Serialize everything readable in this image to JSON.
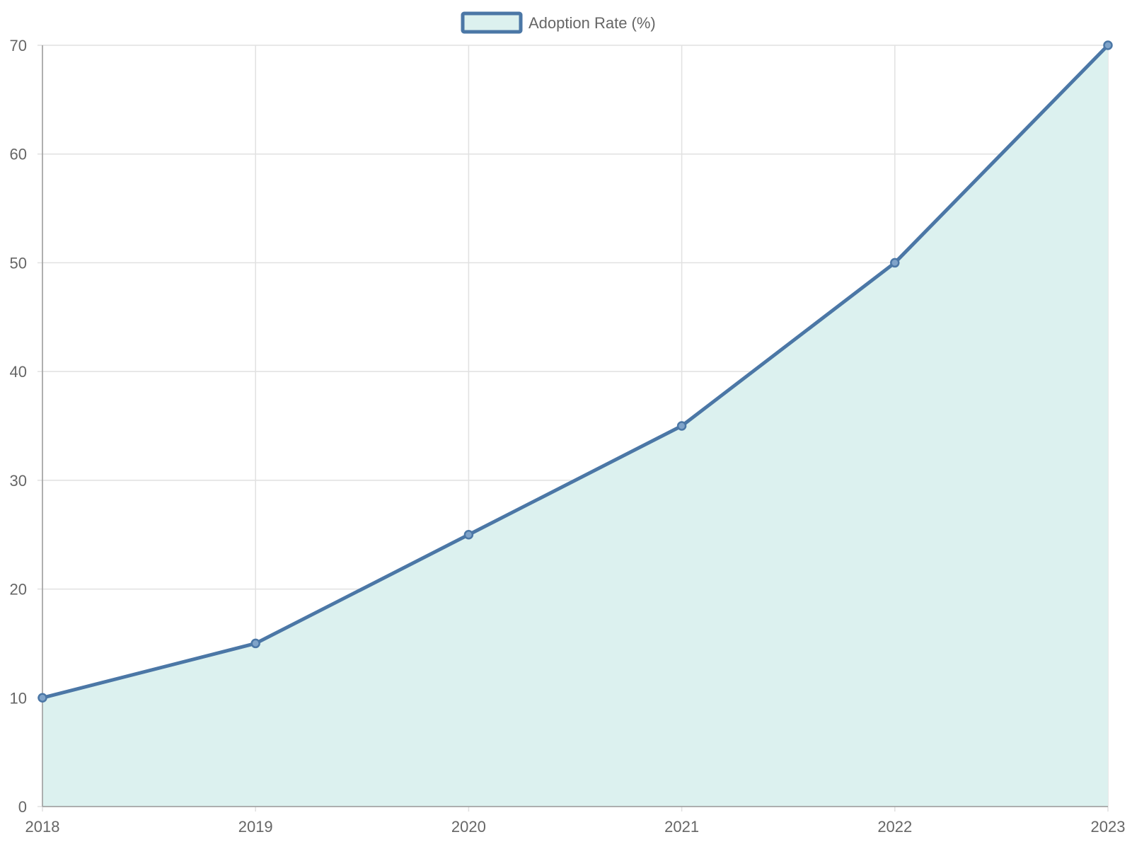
{
  "chart_data": {
    "type": "area",
    "categories": [
      "2018",
      "2019",
      "2020",
      "2021",
      "2022",
      "2023"
    ],
    "series": [
      {
        "name": "Adoption Rate (%)",
        "values": [
          10,
          15,
          25,
          35,
          50,
          70
        ]
      }
    ],
    "ylim": [
      0,
      70
    ],
    "yticks": [
      0,
      10,
      20,
      30,
      40,
      50,
      60,
      70
    ],
    "grid": true,
    "legend_position": "top-center",
    "colors": {
      "line": "#4b77a6",
      "fill": "#dcf1ef",
      "grid": "#e1e1e1",
      "axis": "#999999",
      "text": "#666666"
    }
  }
}
